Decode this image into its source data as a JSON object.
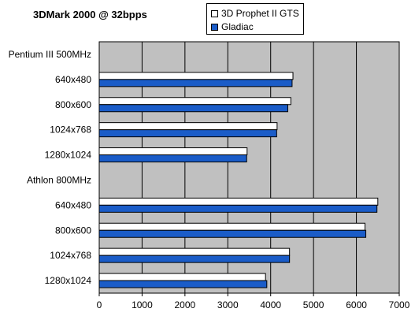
{
  "chart_data": {
    "type": "bar",
    "orientation": "horizontal",
    "title": "3DMark 2000 @ 32bpps",
    "xlabel": "",
    "ylabel": "",
    "xlim": [
      0,
      7000
    ],
    "x_ticks": [
      0,
      1000,
      2000,
      3000,
      4000,
      5000,
      6000,
      7000
    ],
    "grid": true,
    "legend_position": "top-right",
    "categories": [
      "Pentium III 500MHz",
      "640x480",
      "800x600",
      "1024x768",
      "1280x1024",
      "Athlon 800MHz",
      "640x480",
      "800x600",
      "1024x768",
      "1280x1024"
    ],
    "series": [
      {
        "name": "3D Prophet II GTS",
        "color": "#ffffff",
        "values": [
          null,
          4520,
          4470,
          4150,
          3450,
          null,
          6500,
          6200,
          4440,
          3880
        ]
      },
      {
        "name": "Gladiac",
        "color": "#1a5cc8",
        "values": [
          null,
          4500,
          4400,
          4140,
          3440,
          null,
          6480,
          6220,
          4440,
          3910
        ]
      }
    ]
  },
  "colors": {
    "plot_background": "#c0c0c0",
    "gridline": "#000000"
  }
}
